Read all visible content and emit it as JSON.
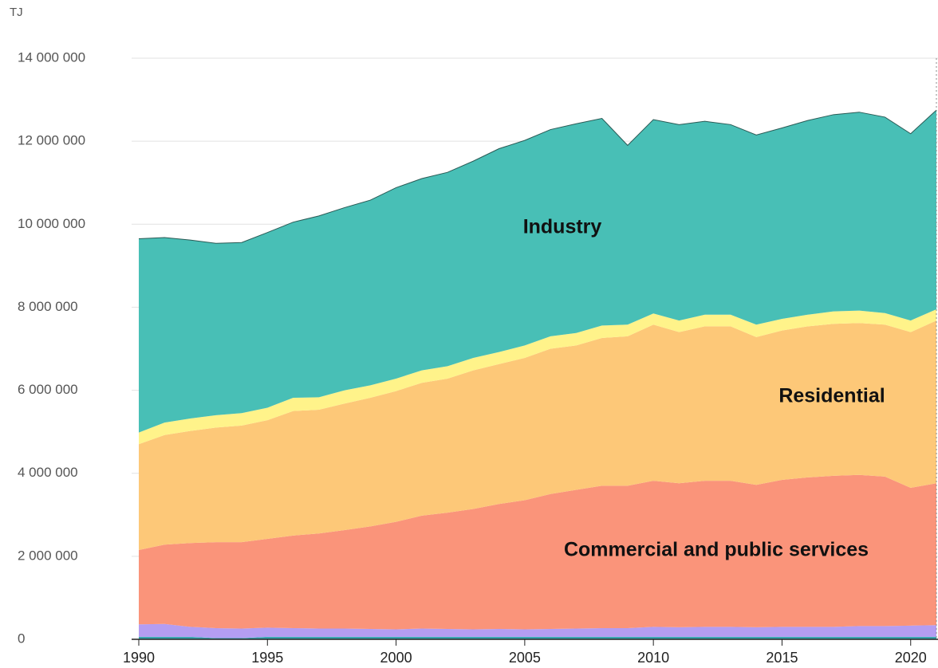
{
  "chart_data": {
    "type": "stacked_area",
    "y_label": "TJ",
    "x": [
      1990,
      1991,
      1992,
      1993,
      1994,
      1995,
      1996,
      1997,
      1998,
      1999,
      2000,
      2001,
      2002,
      2003,
      2004,
      2005,
      2006,
      2007,
      2008,
      2009,
      2010,
      2011,
      2012,
      2013,
      2014,
      2015,
      2016,
      2017,
      2018,
      2019,
      2020,
      2021
    ],
    "xlim": [
      1990,
      2021
    ],
    "xticks": [
      1990,
      1995,
      2000,
      2005,
      2010,
      2015,
      2020
    ],
    "ylim": [
      0,
      14000000
    ],
    "yticks": [
      0,
      {
        "value": 2000000,
        "label": "2 000 000"
      },
      {
        "value": 4000000,
        "label": "4 000 000"
      },
      {
        "value": 6000000,
        "label": "6 000 000"
      },
      {
        "value": 8000000,
        "label": "8 000 000"
      },
      {
        "value": 10000000,
        "label": "10 000 000"
      },
      {
        "value": 12000000,
        "label": "12 000 000"
      },
      {
        "value": 14000000,
        "label": "14 000 000"
      }
    ],
    "grid": true,
    "series": [
      {
        "color": "#3aa6b0",
        "values": [
          60000,
          60000,
          60000,
          30000,
          30000,
          60000,
          60000,
          60000,
          60000,
          60000,
          60000,
          60000,
          60000,
          60000,
          60000,
          60000,
          60000,
          60000,
          60000,
          60000,
          60000,
          60000,
          60000,
          60000,
          60000,
          60000,
          60000,
          60000,
          60000,
          60000,
          60000,
          60000
        ]
      },
      {
        "color": "#b49df2",
        "values": [
          300000,
          310000,
          240000,
          240000,
          230000,
          220000,
          210000,
          200000,
          200000,
          190000,
          180000,
          200000,
          190000,
          180000,
          190000,
          180000,
          190000,
          200000,
          210000,
          210000,
          240000,
          230000,
          240000,
          240000,
          230000,
          240000,
          240000,
          240000,
          260000,
          260000,
          270000,
          280000
        ]
      },
      {
        "name": "Commercial and public services",
        "color": "#fa947a",
        "values": [
          1790000,
          1910000,
          2020000,
          2070000,
          2080000,
          2140000,
          2230000,
          2290000,
          2370000,
          2470000,
          2590000,
          2720000,
          2800000,
          2900000,
          3010000,
          3110000,
          3250000,
          3340000,
          3430000,
          3430000,
          3520000,
          3470000,
          3520000,
          3520000,
          3430000,
          3540000,
          3600000,
          3640000,
          3640000,
          3600000,
          3320000,
          3420000
        ]
      },
      {
        "name": "Residential",
        "color": "#fdc878",
        "values": [
          2550000,
          2640000,
          2700000,
          2760000,
          2810000,
          2860000,
          3000000,
          2980000,
          3050000,
          3100000,
          3150000,
          3200000,
          3230000,
          3340000,
          3370000,
          3430000,
          3500000,
          3480000,
          3560000,
          3600000,
          3760000,
          3640000,
          3720000,
          3720000,
          3560000,
          3600000,
          3640000,
          3660000,
          3660000,
          3660000,
          3750000,
          3920000
        ]
      },
      {
        "color": "#fff38a",
        "values": [
          280000,
          300000,
          300000,
          300000,
          300000,
          300000,
          320000,
          300000,
          320000,
          300000,
          300000,
          300000,
          300000,
          300000,
          290000,
          300000,
          300000,
          300000,
          300000,
          280000,
          270000,
          280000,
          280000,
          280000,
          300000,
          280000,
          280000,
          300000,
          300000,
          280000,
          280000,
          270000
        ]
      },
      {
        "name": "Industry",
        "color": "#48bfb6",
        "values": [
          4670000,
          4460000,
          4300000,
          4140000,
          4110000,
          4220000,
          4230000,
          4370000,
          4400000,
          4460000,
          4600000,
          4620000,
          4670000,
          4740000,
          4900000,
          4940000,
          4980000,
          5040000,
          4990000,
          4320000,
          4670000,
          4720000,
          4660000,
          4580000,
          4570000,
          4600000,
          4680000,
          4740000,
          4780000,
          4720000,
          4500000,
          4800000
        ]
      }
    ]
  }
}
